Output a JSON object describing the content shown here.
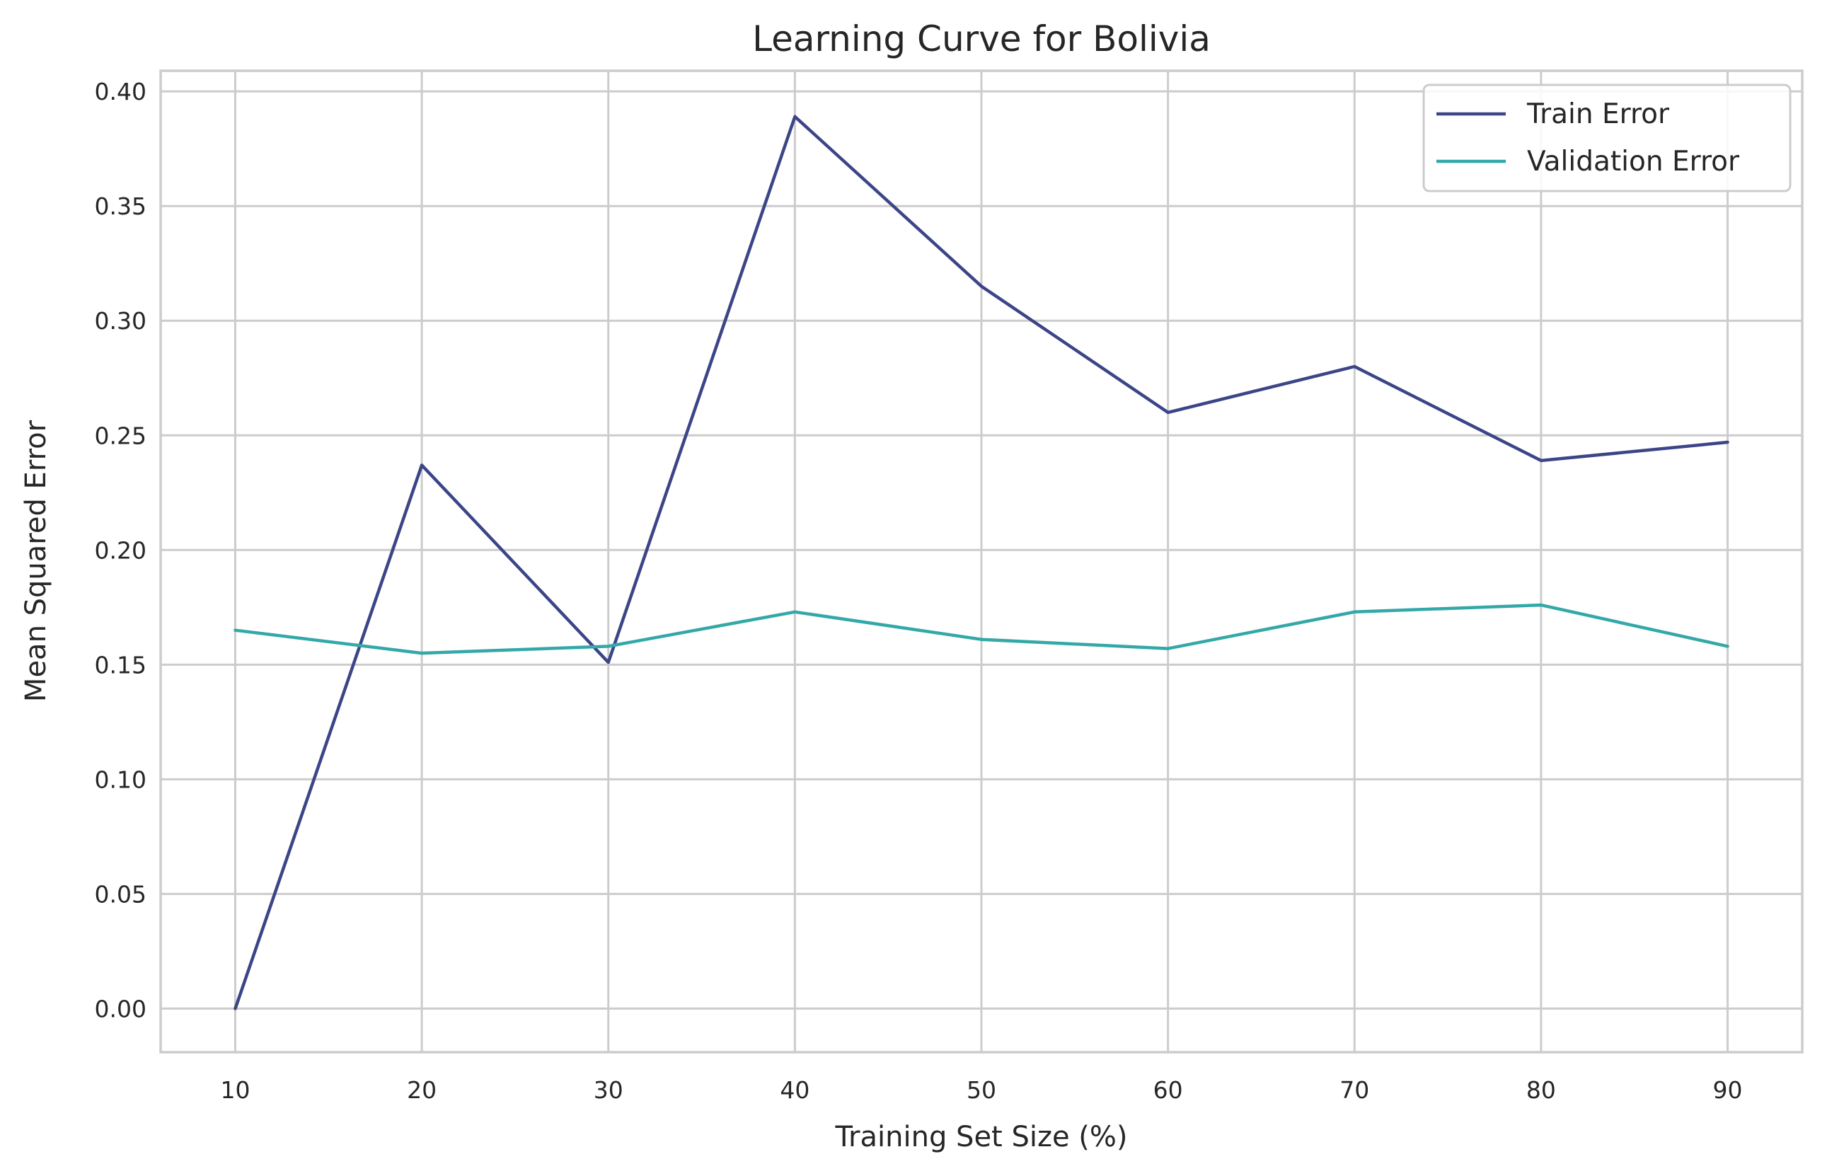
{
  "chart_data": {
    "type": "line",
    "title": "Learning Curve for Bolivia",
    "xlabel": "Training Set Size (%)",
    "ylabel": "Mean Squared Error",
    "x": [
      10,
      20,
      30,
      40,
      50,
      60,
      70,
      80,
      90
    ],
    "xlim": [
      6,
      94
    ],
    "ylim": [
      -0.019,
      0.409
    ],
    "xticks": [
      10,
      20,
      30,
      40,
      50,
      60,
      70,
      80,
      90
    ],
    "xtick_labels": [
      "10",
      "20",
      "30",
      "40",
      "50",
      "60",
      "70",
      "80",
      "90"
    ],
    "yticks": [
      0.0,
      0.05,
      0.1,
      0.15,
      0.2,
      0.25,
      0.3,
      0.35,
      0.4
    ],
    "ytick_labels": [
      "0.00",
      "0.05",
      "0.10",
      "0.15",
      "0.20",
      "0.25",
      "0.30",
      "0.35",
      "0.40"
    ],
    "grid": true,
    "legend_position": "top-right",
    "series": [
      {
        "name": "Train Error",
        "color": "#3b4587",
        "values": [
          0.0,
          0.237,
          0.151,
          0.389,
          0.315,
          0.26,
          0.28,
          0.239,
          0.247
        ]
      },
      {
        "name": "Validation Error",
        "color": "#34a8a8",
        "values": [
          0.165,
          0.155,
          0.158,
          0.173,
          0.161,
          0.157,
          0.173,
          0.176,
          0.158
        ]
      }
    ]
  }
}
